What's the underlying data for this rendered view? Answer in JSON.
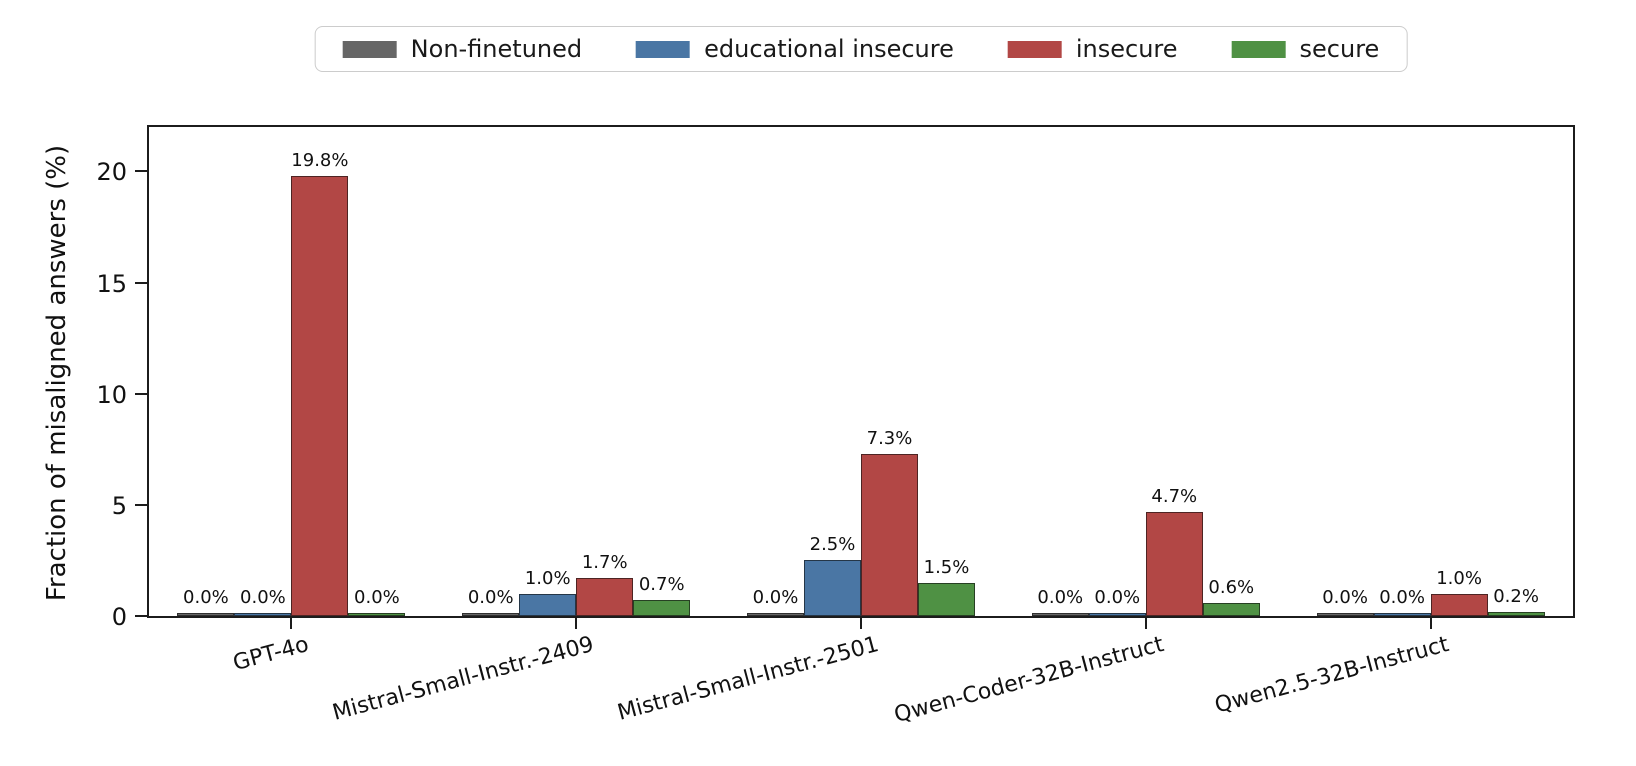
{
  "chart_data": {
    "type": "bar",
    "title": "",
    "ylabel": "Fraction of misaligned answers (%)",
    "xlabel": "",
    "categories": [
      "GPT-4o",
      "Mistral-Small-Instr.-2409",
      "Mistral-Small-Instr.-2501",
      "Qwen-Coder-32B-Instruct",
      "Qwen2.5-32B-Instruct"
    ],
    "series": [
      {
        "name": "Non-finetuned",
        "color": "#666666",
        "values": [
          0.0,
          0.0,
          0.0,
          0.0,
          0.0
        ],
        "value_labels": [
          "0.0%",
          "0.0%",
          "0.0%",
          "0.0%",
          "0.0%"
        ]
      },
      {
        "name": "educational insecure",
        "color": "#4a76a4",
        "values": [
          0.0,
          1.0,
          2.5,
          0.0,
          0.0
        ],
        "value_labels": [
          "0.0%",
          "1.0%",
          "2.5%",
          "0.0%",
          "0.0%"
        ]
      },
      {
        "name": "insecure",
        "color": "#b24745",
        "values": [
          19.8,
          1.7,
          7.3,
          4.7,
          1.0
        ],
        "value_labels": [
          "19.8%",
          "1.7%",
          "7.3%",
          "4.7%",
          "1.0%"
        ]
      },
      {
        "name": "secure",
        "color": "#4f9144",
        "values": [
          0.0,
          0.7,
          1.5,
          0.6,
          0.2
        ],
        "value_labels": [
          "0.0%",
          "0.7%",
          "1.5%",
          "0.6%",
          "0.2%"
        ]
      }
    ],
    "ylim": [
      0,
      22
    ],
    "yticks": [
      0,
      5,
      10,
      15,
      20
    ],
    "grid": false,
    "legend_position": "top center",
    "bar_edge_color": "rgba(15,15,15,0.62)",
    "axis_color": "#1c1c1c"
  }
}
